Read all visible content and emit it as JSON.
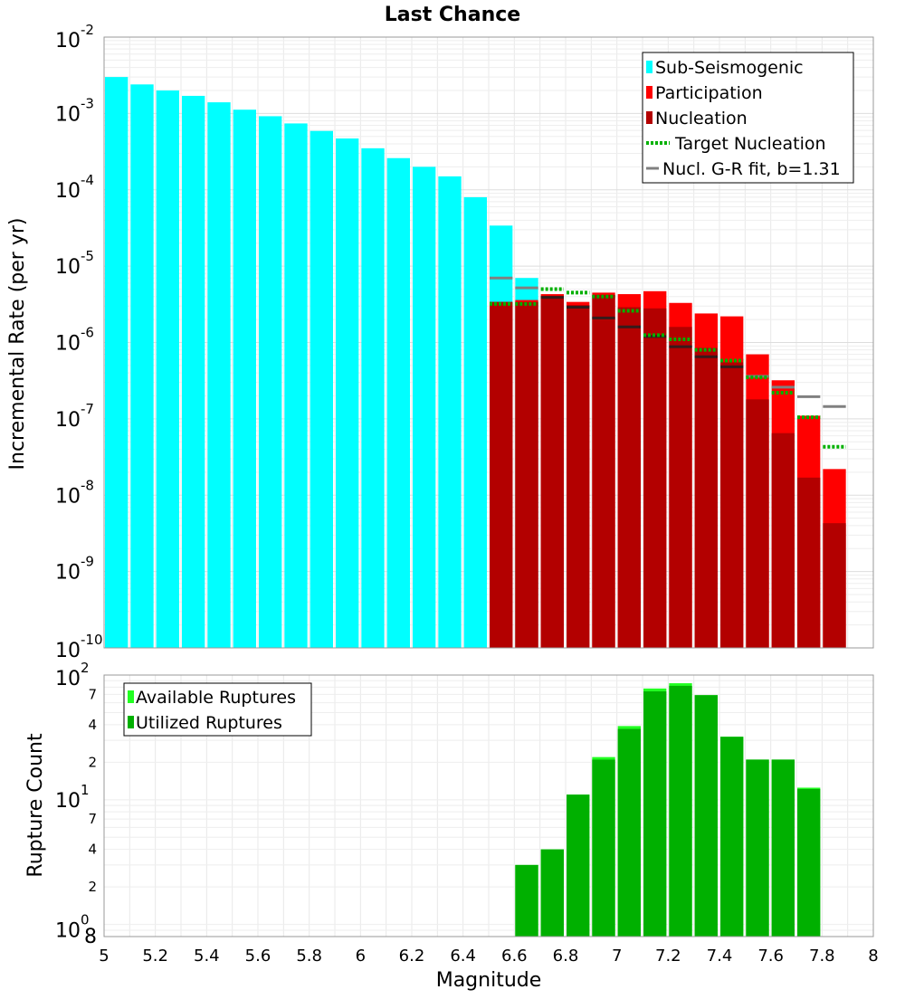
{
  "chart_data": [
    {
      "type": "bar",
      "title": "Last Chance",
      "xlabel": "",
      "ylabel": "Incremental Rate (per yr)",
      "yscale": "log",
      "xlim": [
        5,
        8
      ],
      "ylim": [
        1e-10,
        0.01
      ],
      "y_tick_labels": [
        {
          "base": "10",
          "exp": "-10"
        },
        {
          "base": "10",
          "exp": "-9"
        },
        {
          "base": "10",
          "exp": "-8"
        },
        {
          "base": "10",
          "exp": "-7"
        },
        {
          "base": "10",
          "exp": "-6"
        },
        {
          "base": "10",
          "exp": "-5"
        },
        {
          "base": "10",
          "exp": "-4"
        },
        {
          "base": "10",
          "exp": "-3"
        },
        {
          "base": "10",
          "exp": "-2"
        }
      ],
      "legend": {
        "position": "top-right",
        "entries": [
          "Sub-Seismogenic",
          "Participation",
          "Nucleation",
          "Target Nucleation",
          "Nucl. G-R fit, b=1.31"
        ]
      },
      "colors": {
        "sub_seismogenic": "#00ffff",
        "participation": "#ff0000",
        "nucleation": "#b30000",
        "target": "#00b000",
        "gr_fit": "#808080"
      },
      "series": [
        {
          "name": "Sub-Seismogenic",
          "x": [
            5.05,
            5.15,
            5.25,
            5.35,
            5.45,
            5.55,
            5.65,
            5.75,
            5.85,
            5.95,
            6.05,
            6.15,
            6.25,
            6.35,
            6.45,
            6.55,
            6.65
          ],
          "values": [
            0.003,
            0.0024,
            0.002,
            0.0017,
            0.0014,
            0.00112,
            0.00092,
            0.00074,
            0.00059,
            0.00047,
            0.00035,
            0.00026,
            0.0002,
            0.00015,
            8e-05,
            3.4e-05,
            7e-06
          ]
        },
        {
          "name": "Participation",
          "x": [
            6.55,
            6.65,
            6.75,
            6.85,
            6.95,
            7.05,
            7.15,
            7.25,
            7.35,
            7.45,
            7.55,
            7.65,
            7.75,
            7.85
          ],
          "values": [
            3.4e-06,
            3.6e-06,
            4.3e-06,
            3.4e-06,
            4.5e-06,
            4.3e-06,
            4.7e-06,
            3.3e-06,
            2.4e-06,
            2.2e-06,
            7e-07,
            3.2e-07,
            1.1e-07,
            2.2e-08
          ]
        },
        {
          "name": "Nucleation",
          "x": [
            6.55,
            6.65,
            6.75,
            6.85,
            6.95,
            7.05,
            7.15,
            7.25,
            7.35,
            7.45,
            7.55,
            7.65,
            7.75,
            7.85
          ],
          "values": [
            3.4e-06,
            3.4e-06,
            4.1e-06,
            3.1e-06,
            4.2e-06,
            2.9e-06,
            2.8e-06,
            1.6e-06,
            8.5e-07,
            5.5e-07,
            1.8e-07,
            6.5e-08,
            1.7e-08,
            4.3e-09
          ]
        },
        {
          "name": "Target Nucleation",
          "x": [
            6.55,
            6.65,
            6.75,
            6.85,
            6.95,
            7.05,
            7.15,
            7.25,
            7.35,
            7.45,
            7.55,
            7.65,
            7.75,
            7.85
          ],
          "values": [
            3.2e-06,
            3.2e-06,
            5e-06,
            4.5e-06,
            4e-06,
            2.6e-06,
            1.25e-06,
            1.1e-06,
            8e-07,
            5.8e-07,
            3.5e-07,
            2.2e-07,
            1.05e-07,
            4.3e-08
          ]
        },
        {
          "name": "Nucl. G-R fit, b=1.31",
          "x": [
            6.55,
            6.65,
            6.75,
            6.85,
            6.95,
            7.05,
            7.15,
            7.25,
            7.35,
            7.45,
            7.55,
            7.65,
            7.75,
            7.85
          ],
          "values": [
            7e-06,
            5.2e-06,
            3.9e-06,
            2.9e-06,
            2.1e-06,
            1.6e-06,
            1.2e-06,
            8.8e-07,
            6.5e-07,
            4.8e-07,
            3.6e-07,
            2.6e-07,
            1.95e-07,
            1.45e-07
          ]
        }
      ]
    },
    {
      "type": "bar",
      "title": "",
      "xlabel": "Magnitude",
      "ylabel": "Rupture Count",
      "yscale": "log",
      "xlim": [
        5,
        8
      ],
      "ylim": [
        0.8,
        100
      ],
      "x_tick_labels": [
        "5",
        "5.2",
        "5.4",
        "5.6",
        "5.8",
        "6",
        "6.2",
        "6.4",
        "6.6",
        "6.8",
        "7",
        "7.2",
        "7.4",
        "7.6",
        "7.8",
        "8"
      ],
      "y_tick_labels": [
        {
          "value": 1,
          "base": "10",
          "exp": "0",
          "main": true
        },
        {
          "value": 2,
          "label": "2",
          "main": false
        },
        {
          "value": 4,
          "label": "4",
          "main": false
        },
        {
          "value": 7,
          "label": "7",
          "main": false
        },
        {
          "value": 10,
          "base": "10",
          "exp": "1",
          "main": true
        },
        {
          "value": 20,
          "label": "2",
          "main": false
        },
        {
          "value": 40,
          "label": "4",
          "main": false
        },
        {
          "value": 70,
          "label": "7",
          "main": false
        },
        {
          "value": 100,
          "base": "10",
          "exp": "2",
          "main": true
        }
      ],
      "corner_label": "8",
      "legend": {
        "position": "top-left",
        "entries": [
          "Available Ruptures",
          "Utilized Ruptures"
        ]
      },
      "colors": {
        "available": "#22ff22",
        "utilized": "#00b000"
      },
      "series": [
        {
          "name": "Available Ruptures",
          "x": [
            6.65,
            6.75,
            6.85,
            6.95,
            7.05,
            7.15,
            7.25,
            7.35,
            7.45,
            7.55,
            7.65,
            7.75
          ],
          "values": [
            3,
            4,
            11,
            22,
            39,
            78,
            86,
            69,
            32,
            21,
            21,
            12.5
          ]
        },
        {
          "name": "Utilized Ruptures",
          "x": [
            6.65,
            6.75,
            6.85,
            6.95,
            7.05,
            7.15,
            7.25,
            7.35,
            7.45,
            7.55,
            7.65,
            7.75
          ],
          "values": [
            3,
            4,
            11,
            21,
            37,
            74,
            82,
            69,
            32,
            21,
            21,
            12.2
          ]
        }
      ]
    }
  ]
}
